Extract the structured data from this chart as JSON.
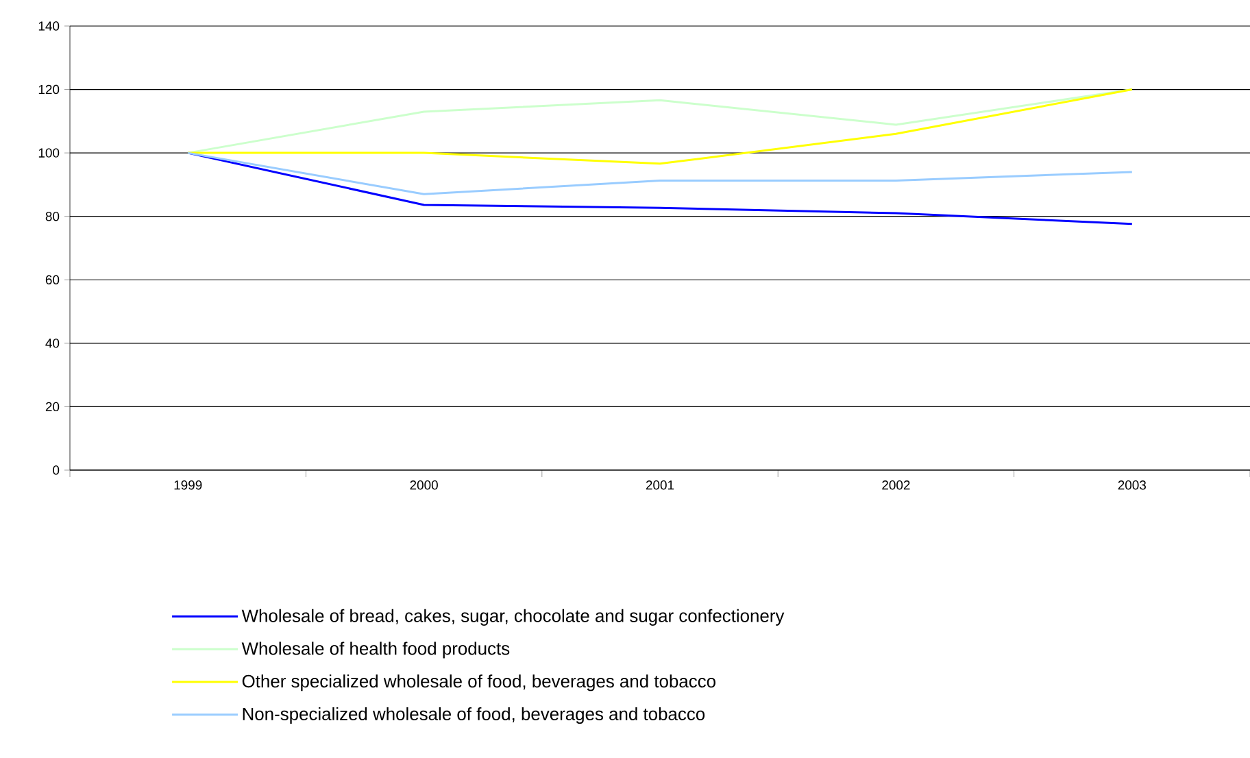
{
  "chart_data": {
    "type": "line",
    "categories": [
      "1999",
      "2000",
      "2001",
      "2002",
      "2003"
    ],
    "series": [
      {
        "name": "Wholesale of bread, cakes, sugar, chocolate and sugar confectionery",
        "color": "#0000ff",
        "values": [
          100,
          83.6,
          82.7,
          81,
          77.6
        ]
      },
      {
        "name": "Wholesale of health food products",
        "color": "#ccffcc",
        "values": [
          100,
          113,
          116.6,
          108.9,
          120
        ]
      },
      {
        "name": "Other specialized wholesale of food, beverages and tobacco",
        "color": "#ffff00",
        "values": [
          100,
          100,
          96.6,
          106,
          120
        ]
      },
      {
        "name": "Non-specialized wholesale of food, beverages and tobacco",
        "color": "#99ccff",
        "values": [
          100,
          87,
          91.3,
          91.3,
          94
        ]
      }
    ],
    "ylim": [
      0,
      140
    ],
    "yticks": [
      0,
      20,
      40,
      60,
      80,
      100,
      120,
      140
    ],
    "grid": "y",
    "legend": "bottom",
    "marker": "none",
    "line_style": "solid"
  }
}
